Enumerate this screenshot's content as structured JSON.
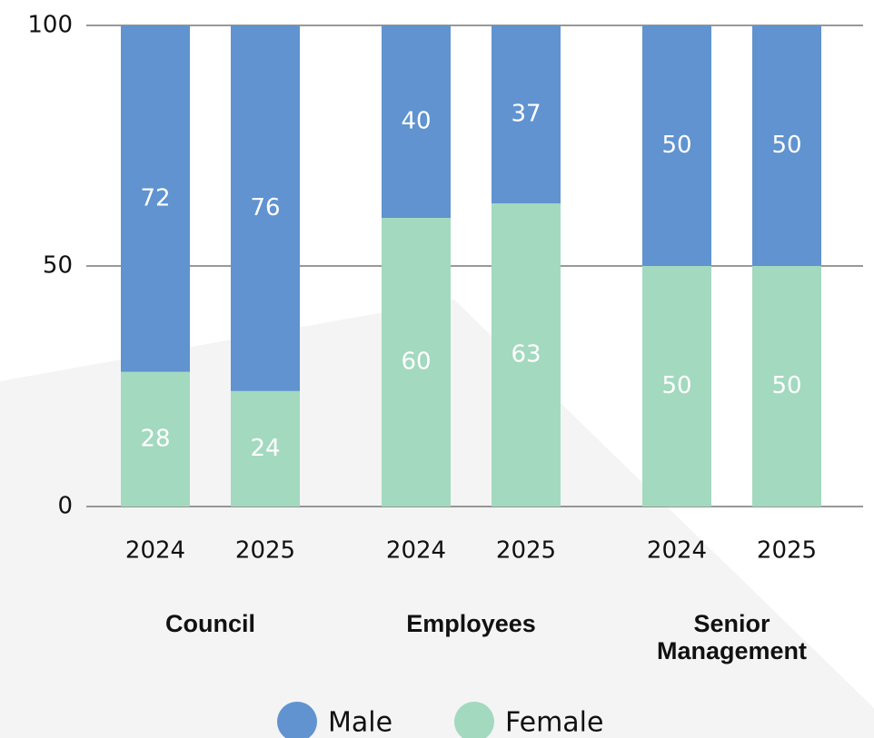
{
  "chart_data": {
    "type": "stacked_bar",
    "groups": [
      {
        "name": "Council",
        "categories": [
          "2024",
          "2025"
        ]
      },
      {
        "name": "Employees",
        "categories": [
          "2024",
          "2025"
        ]
      },
      {
        "name": "Senior Management",
        "categories": [
          "2024",
          "2025"
        ]
      }
    ],
    "series": [
      {
        "name": "Male",
        "color": "#6093cf",
        "values": [
          72,
          76,
          40,
          37,
          50,
          50
        ]
      },
      {
        "name": "Female",
        "color": "#a3d9bf",
        "values": [
          28,
          24,
          60,
          63,
          50,
          50
        ]
      }
    ],
    "ylim": [
      0,
      100
    ],
    "yticks": [
      0,
      50,
      100
    ],
    "grid": true,
    "legend": "bottom"
  }
}
